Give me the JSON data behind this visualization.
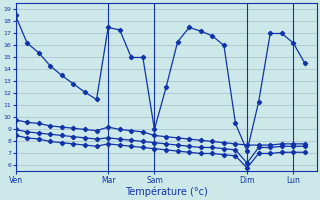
{
  "title": "Température (°c)",
  "bg_color": "#cce8e8",
  "grid_color": "#aabccc",
  "line_color": "#1133aa",
  "yticks": [
    6,
    7,
    8,
    9,
    10,
    11,
    12,
    13,
    14,
    15,
    16,
    17,
    18,
    19
  ],
  "ylim": [
    5.5,
    19.5
  ],
  "day_labels": [
    "Ven",
    "Mar",
    "Sam",
    "Dim",
    "Lun"
  ],
  "day_positions": [
    0,
    8,
    12,
    20,
    24
  ],
  "xlim": [
    0,
    26
  ],
  "vlines": [
    8,
    12,
    20,
    24
  ],
  "main_x": [
    0,
    1,
    2,
    3,
    4,
    5,
    6,
    7,
    8,
    9,
    10,
    11,
    12,
    13,
    14,
    15,
    16,
    17,
    18,
    19,
    20,
    21,
    22,
    23,
    24,
    25
  ],
  "main_y": [
    18.5,
    16.2,
    15.4,
    14.3,
    13.5,
    12.8,
    12.1,
    11.5,
    17.5,
    17.3,
    15.0,
    15.0,
    9.0,
    12.5,
    16.3,
    17.5,
    17.2,
    16.8,
    16.0,
    9.5,
    7.2,
    11.3,
    17.0,
    17.0,
    16.2,
    14.5
  ],
  "flat1_x": [
    0,
    1,
    2,
    3,
    4,
    5,
    6,
    7,
    8,
    9,
    10,
    11,
    12,
    13,
    14,
    15,
    16,
    17,
    18,
    19,
    20,
    21,
    22,
    23,
    24,
    25
  ],
  "flat1_y": [
    9.8,
    9.6,
    9.5,
    9.3,
    9.2,
    9.1,
    9.0,
    8.9,
    9.2,
    9.0,
    8.9,
    8.8,
    8.5,
    8.4,
    8.3,
    8.2,
    8.1,
    8.0,
    7.9,
    7.8,
    7.7,
    7.7,
    7.7,
    7.8,
    7.8,
    7.8
  ],
  "flat2_x": [
    0,
    1,
    2,
    3,
    4,
    5,
    6,
    7,
    8,
    9,
    10,
    11,
    12,
    13,
    14,
    15,
    16,
    17,
    18,
    19,
    20,
    21,
    22,
    23,
    24,
    25
  ],
  "flat2_y": [
    9.0,
    8.8,
    8.7,
    8.6,
    8.5,
    8.4,
    8.3,
    8.2,
    8.3,
    8.2,
    8.1,
    8.0,
    7.9,
    7.8,
    7.7,
    7.6,
    7.5,
    7.5,
    7.4,
    7.3,
    6.2,
    7.5,
    7.5,
    7.6,
    7.6,
    7.6
  ],
  "flat3_x": [
    0,
    1,
    2,
    3,
    4,
    5,
    6,
    7,
    8,
    9,
    10,
    11,
    12,
    13,
    14,
    15,
    16,
    17,
    18,
    19,
    20,
    21,
    22,
    23,
    24,
    25
  ],
  "flat3_y": [
    8.5,
    8.3,
    8.2,
    8.0,
    7.9,
    7.8,
    7.7,
    7.6,
    7.8,
    7.7,
    7.6,
    7.5,
    7.4,
    7.3,
    7.2,
    7.1,
    7.0,
    7.0,
    6.9,
    6.8,
    5.8,
    7.0,
    7.0,
    7.1,
    7.1,
    7.1
  ]
}
